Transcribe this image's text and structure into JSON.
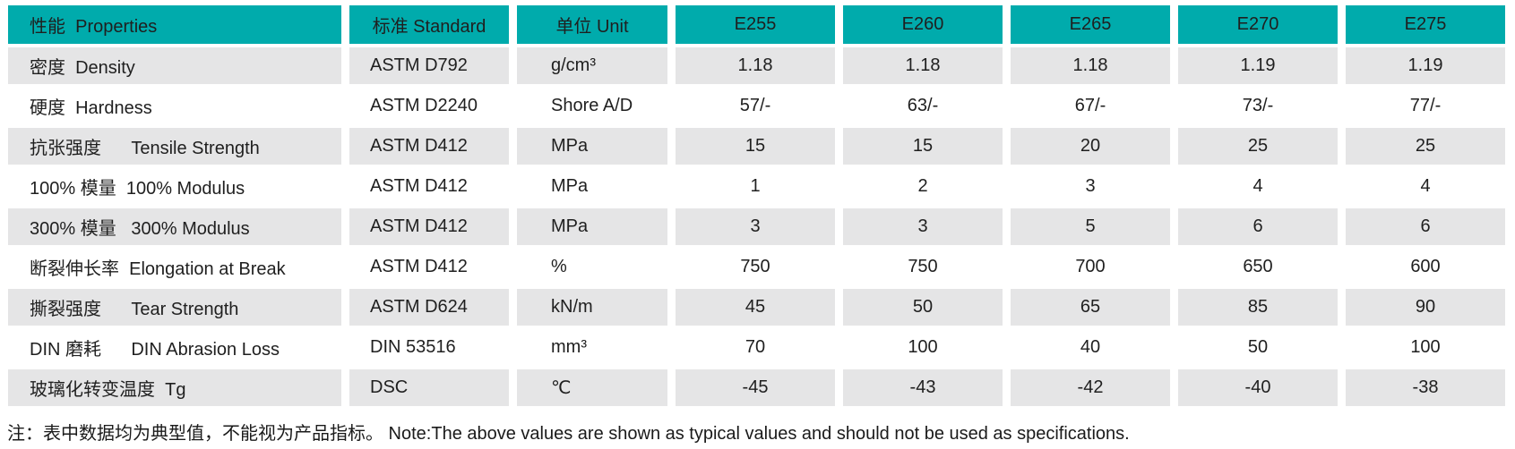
{
  "colors": {
    "header_bg": "#00abac",
    "row_alt_bg": "#e5e5e6",
    "text": "#1f1f1f"
  },
  "table": {
    "header": {
      "property": "性能  Properties",
      "standard": "标准 Standard",
      "unit": "单位 Unit",
      "grades": [
        "E255",
        "E260",
        "E265",
        "E270",
        "E275"
      ]
    },
    "rows": [
      {
        "label": "密度  Density",
        "standard": "ASTM D792",
        "unit": "g/cm³",
        "values": [
          "1.18",
          "1.18",
          "1.18",
          "1.19",
          "1.19"
        ]
      },
      {
        "label": "硬度  Hardness",
        "standard": "ASTM D2240",
        "unit": "Shore A/D",
        "values": [
          "57/-",
          "63/-",
          "67/-",
          "73/-",
          "77/-"
        ]
      },
      {
        "label": "抗张强度      Tensile Strength",
        "standard": "ASTM D412",
        "unit": "MPa",
        "values": [
          "15",
          "15",
          "20",
          "25",
          "25"
        ]
      },
      {
        "label": "100% 模量  100% Modulus",
        "standard": "ASTM D412",
        "unit": "MPa",
        "values": [
          "1",
          "2",
          "3",
          "4",
          "4"
        ]
      },
      {
        "label": "300% 模量   300% Modulus",
        "standard": "ASTM D412",
        "unit": "MPa",
        "values": [
          "3",
          "3",
          "5",
          "6",
          "6"
        ]
      },
      {
        "label": "断裂伸长率  Elongation at Break",
        "standard": "ASTM D412",
        "unit": "%",
        "values": [
          "750",
          "750",
          "700",
          "650",
          "600"
        ]
      },
      {
        "label": "撕裂强度      Tear Strength",
        "standard": "ASTM D624",
        "unit": "kN/m",
        "values": [
          "45",
          "50",
          "65",
          "85",
          "90"
        ]
      },
      {
        "label": "DIN 磨耗      DIN Abrasion Loss",
        "standard": "DIN 53516",
        "unit": "mm³",
        "values": [
          "70",
          "100",
          "40",
          "50",
          "100"
        ]
      },
      {
        "label": "玻璃化转变温度  Tg",
        "standard": "DSC",
        "unit": "℃",
        "values": [
          "-45",
          "-43",
          "-42",
          "-40",
          "-38"
        ]
      }
    ]
  },
  "note": "注：表中数据均为典型值，不能视为产品指标。 Note:The above values are shown as typical values and should not be used as specifications."
}
